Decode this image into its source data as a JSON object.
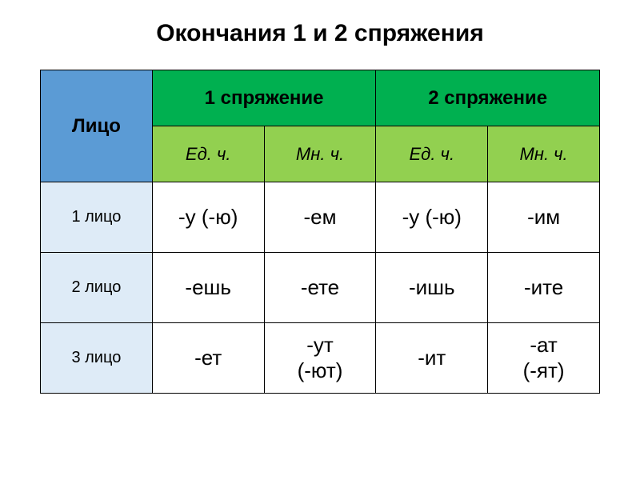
{
  "title": "Окончания 1 и 2 спряжения",
  "table": {
    "colors": {
      "header_litso_bg": "#5b9bd5",
      "header_conj_bg": "#00b050",
      "header_sub_bg": "#92d050",
      "row_label_bg": "#deebf7",
      "cell_bg": "#ffffff",
      "border": "#000000",
      "text": "#000000"
    },
    "structure": {
      "columns": 5,
      "header_rows": 2,
      "data_rows": 3
    },
    "headers": {
      "litso": "Лицо",
      "conj1": "1 спряжение",
      "conj2": "2 спряжение",
      "sub": {
        "ed1": "Ед. ч.",
        "mn1": "Мн. ч.",
        "ed2": "Ед. ч.",
        "mn2": "Мн. ч."
      }
    },
    "rows": [
      {
        "label": "1 лицо",
        "cells": [
          "-у (-ю)",
          "-ем",
          "-у (-ю)",
          "-им"
        ]
      },
      {
        "label": "2 лицо",
        "cells": [
          "-ешь",
          "-ете",
          "-ишь",
          "-ите"
        ]
      },
      {
        "label": "3 лицо",
        "cells": [
          "-ет",
          "-ут\n(-ют)",
          "-ит",
          "-ат\n(-ят)"
        ]
      }
    ]
  },
  "typography": {
    "title_fontsize": 30,
    "header_fontsize": 24,
    "sub_fontsize": 22,
    "rowlabel_fontsize": 20,
    "cell_fontsize": 26
  }
}
